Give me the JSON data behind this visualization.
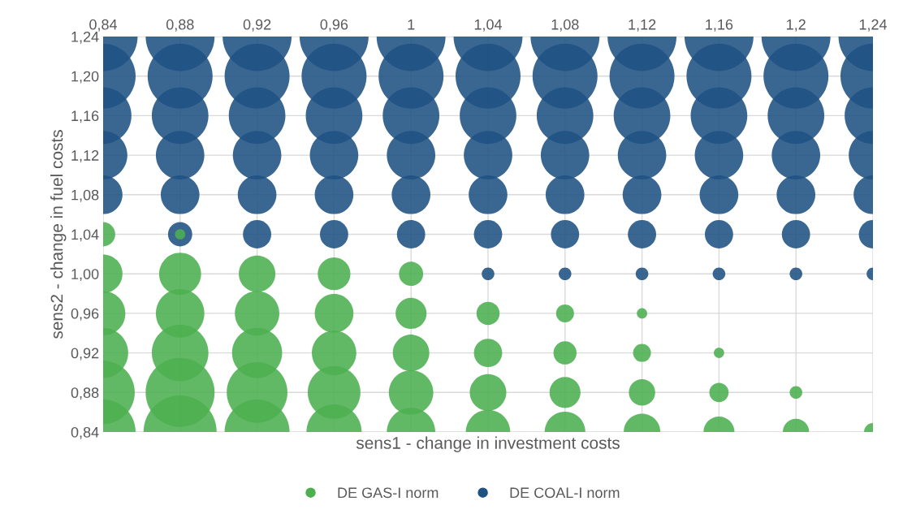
{
  "chart_data": {
    "type": "bubble",
    "xlabel": "sens1 - change in investment costs",
    "ylabel": "sens2 - change in fuel costs",
    "xlim": [
      0.84,
      1.24
    ],
    "ylim": [
      0.84,
      1.24
    ],
    "xticks": [
      {
        "value": 0.84,
        "label": "0,84"
      },
      {
        "value": 0.88,
        "label": "0,88"
      },
      {
        "value": 0.92,
        "label": "0,92"
      },
      {
        "value": 0.96,
        "label": "0,96"
      },
      {
        "value": 1,
        "label": "1"
      },
      {
        "value": 1.04,
        "label": "1,04"
      },
      {
        "value": 1.08,
        "label": "1,08"
      },
      {
        "value": 1.12,
        "label": "1,12"
      },
      {
        "value": 1.16,
        "label": "1,16"
      },
      {
        "value": 1.2,
        "label": "1,2"
      },
      {
        "value": 1.24,
        "label": "1,24"
      }
    ],
    "yticks": [
      {
        "value": 0.84,
        "label": "0,84"
      },
      {
        "value": 0.88,
        "label": "0,88"
      },
      {
        "value": 0.92,
        "label": "0,92"
      },
      {
        "value": 0.96,
        "label": "0,96"
      },
      {
        "value": 1,
        "label": "1,00"
      },
      {
        "value": 1.04,
        "label": "1,04"
      },
      {
        "value": 1.08,
        "label": "1,08"
      },
      {
        "value": 1.12,
        "label": "1,12"
      },
      {
        "value": 1.16,
        "label": "1,16"
      },
      {
        "value": 1.2,
        "label": "1,20"
      },
      {
        "value": 1.24,
        "label": "1,24"
      }
    ],
    "grid": true,
    "legend": "bottom",
    "marker": "circle",
    "series": [
      {
        "name": "DE GAS-I norm",
        "color": "#4caf50",
        "x": [
          0.84,
          0.88,
          0.92,
          0.96,
          1,
          1.04,
          1.08,
          1.12,
          1.16,
          1.2,
          1.24,
          0.84,
          0.88,
          0.92,
          0.96,
          1,
          1.04,
          1.08,
          1.12,
          1.16,
          1.2,
          0.84,
          0.88,
          0.92,
          0.96,
          1,
          1.04,
          1.08,
          1.12,
          1.16,
          0.84,
          0.88,
          0.92,
          0.96,
          1,
          1.04,
          1.08,
          1.12,
          0.84,
          0.88,
          0.92,
          0.96,
          1,
          0.84,
          0.88
        ],
        "values": [
          0.84,
          0.84,
          0.84,
          0.84,
          0.84,
          0.84,
          0.84,
          0.84,
          0.84,
          0.84,
          0.84,
          0.88,
          0.88,
          0.88,
          0.88,
          0.88,
          0.88,
          0.88,
          0.88,
          0.88,
          0.88,
          0.92,
          0.92,
          0.92,
          0.92,
          0.92,
          0.92,
          0.92,
          0.92,
          0.92,
          0.96,
          0.96,
          0.96,
          0.96,
          0.96,
          0.96,
          0.96,
          0.96,
          1,
          1,
          1,
          1,
          1,
          1.04,
          1.04
        ],
        "sizes": [
          0.79,
          1,
          0.79,
          0.57,
          0.44,
          0.37,
          0.31,
          0.25,
          0.18,
          0.13,
          0.06,
          0.75,
          0.89,
          0.69,
          0.52,
          0.37,
          0.25,
          0.18,
          0.13,
          0.07,
          0.03,
          0.47,
          0.6,
          0.47,
          0.37,
          0.25,
          0.15,
          0.1,
          0.06,
          0.02,
          0.37,
          0.44,
          0.37,
          0.28,
          0.18,
          0.1,
          0.06,
          0.02,
          0.28,
          0.33,
          0.25,
          0.2,
          0.11,
          0.11,
          0.02
        ]
      },
      {
        "name": "DE COAL-I norm",
        "color": "#1f5283",
        "x": [
          1.04,
          1.08,
          1.12,
          1.16,
          1.2,
          1.24,
          0.88,
          0.92,
          0.96,
          1,
          1.04,
          1.08,
          1.12,
          1.16,
          1.2,
          1.24,
          0.84,
          0.88,
          0.92,
          0.96,
          1,
          1.04,
          1.08,
          1.12,
          1.16,
          1.2,
          1.24,
          0.84,
          0.88,
          0.92,
          0.96,
          1,
          1.04,
          1.08,
          1.12,
          1.16,
          1.2,
          1.24,
          0.84,
          0.88,
          0.92,
          0.96,
          1,
          1.04,
          1.08,
          1.12,
          1.16,
          1.2,
          1.24,
          0.84,
          0.88,
          0.92,
          0.96,
          1,
          1.04,
          1.08,
          1.12,
          1.16,
          1.2,
          1.24,
          0.84,
          0.88,
          0.92,
          0.96,
          1,
          1.04,
          1.08,
          1.12,
          1.16,
          1.2,
          1.24
        ],
        "values": [
          1,
          1,
          1,
          1,
          1,
          1,
          1.04,
          1.04,
          1.04,
          1.04,
          1.04,
          1.04,
          1.04,
          1.04,
          1.04,
          1.04,
          1.08,
          1.08,
          1.08,
          1.08,
          1.08,
          1.08,
          1.08,
          1.08,
          1.08,
          1.08,
          1.08,
          1.12,
          1.12,
          1.12,
          1.12,
          1.12,
          1.12,
          1.12,
          1.12,
          1.12,
          1.12,
          1.12,
          1.16,
          1.16,
          1.16,
          1.16,
          1.16,
          1.16,
          1.16,
          1.16,
          1.16,
          1.16,
          1.16,
          1.2,
          1.2,
          1.2,
          1.2,
          1.2,
          1.2,
          1.2,
          1.2,
          1.2,
          1.2,
          1.2,
          1.24,
          1.24,
          1.24,
          1.24,
          1.24,
          1.24,
          1.24,
          1.24,
          1.24,
          1.24,
          1.24
        ],
        "sizes": [
          0.03,
          0.03,
          0.03,
          0.03,
          0.03,
          0.03,
          0.11,
          0.15,
          0.15,
          0.15,
          0.15,
          0.15,
          0.15,
          0.15,
          0.15,
          0.15,
          0.28,
          0.28,
          0.28,
          0.28,
          0.28,
          0.28,
          0.28,
          0.28,
          0.28,
          0.28,
          0.28,
          0.44,
          0.44,
          0.44,
          0.44,
          0.44,
          0.44,
          0.44,
          0.44,
          0.44,
          0.44,
          0.44,
          0.6,
          0.6,
          0.6,
          0.6,
          0.6,
          0.6,
          0.6,
          0.6,
          0.6,
          0.6,
          0.6,
          0.79,
          0.79,
          0.79,
          0.79,
          0.79,
          0.79,
          0.79,
          0.79,
          0.79,
          0.79,
          0.79,
          0.89,
          0.89,
          0.89,
          0.89,
          0.89,
          0.89,
          0.89,
          0.89,
          0.89,
          0.89,
          0.89
        ]
      }
    ]
  }
}
